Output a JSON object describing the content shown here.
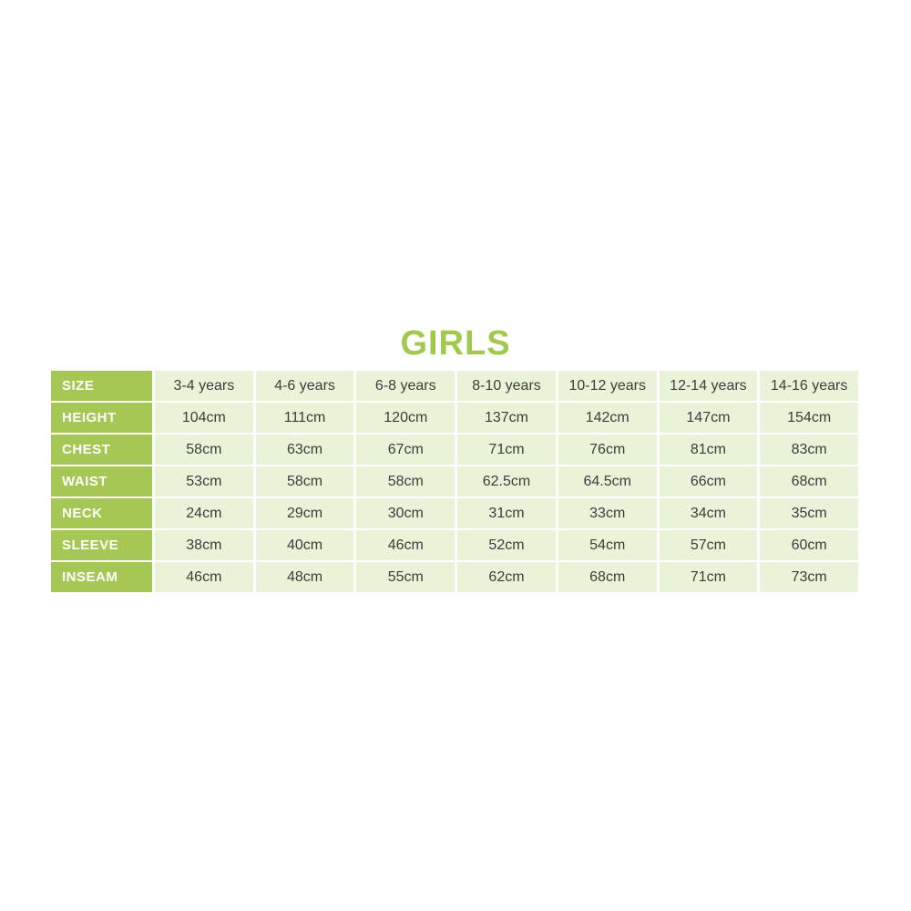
{
  "title": "GIRLS",
  "colors": {
    "title_green": "#a2c84d",
    "label_bg": "#a4c853",
    "label_text": "#ffffff",
    "cell_bg": "#e9f3d8",
    "cell_text": "#3d3d3d",
    "page_bg": "#ffffff"
  },
  "chart_data": {
    "type": "table",
    "title": "GIRLS",
    "columns": [
      "SIZE",
      "3-4 years",
      "4-6 years",
      "6-8 years",
      "8-10 years",
      "10-12 years",
      "12-14 years",
      "14-16 years"
    ],
    "rows": [
      [
        "HEIGHT",
        "104cm",
        "111cm",
        "120cm",
        "137cm",
        "142cm",
        "147cm",
        "154cm"
      ],
      [
        "CHEST",
        "58cm",
        "63cm",
        "67cm",
        "71cm",
        "76cm",
        "81cm",
        "83cm"
      ],
      [
        "WAIST",
        "53cm",
        "58cm",
        "58cm",
        "62.5cm",
        "64.5cm",
        "66cm",
        "68cm"
      ],
      [
        "NECK",
        "24cm",
        "29cm",
        "30cm",
        "31cm",
        "33cm",
        "34cm",
        "35cm"
      ],
      [
        "SLEEVE",
        "38cm",
        "40cm",
        "46cm",
        "52cm",
        "54cm",
        "57cm",
        "60cm"
      ],
      [
        "INSEAM",
        "46cm",
        "48cm",
        "55cm",
        "62cm",
        "68cm",
        "71cm",
        "73cm"
      ]
    ]
  },
  "table": {
    "header_label": "SIZE",
    "size_columns": [
      "3-4 years",
      "4-6 years",
      "6-8 years",
      "8-10 years",
      "10-12 years",
      "12-14 years",
      "14-16 years"
    ],
    "rows": [
      {
        "label": "HEIGHT",
        "values": [
          "104cm",
          "111cm",
          "120cm",
          "137cm",
          "142cm",
          "147cm",
          "154cm"
        ]
      },
      {
        "label": "CHEST",
        "values": [
          "58cm",
          "63cm",
          "67cm",
          "71cm",
          "76cm",
          "81cm",
          "83cm"
        ]
      },
      {
        "label": "WAIST",
        "values": [
          "53cm",
          "58cm",
          "58cm",
          "62.5cm",
          "64.5cm",
          "66cm",
          "68cm"
        ]
      },
      {
        "label": "NECK",
        "values": [
          "24cm",
          "29cm",
          "30cm",
          "31cm",
          "33cm",
          "34cm",
          "35cm"
        ]
      },
      {
        "label": "SLEEVE",
        "values": [
          "38cm",
          "40cm",
          "46cm",
          "52cm",
          "54cm",
          "57cm",
          "60cm"
        ]
      },
      {
        "label": "INSEAM",
        "values": [
          "46cm",
          "48cm",
          "55cm",
          "62cm",
          "68cm",
          "71cm",
          "73cm"
        ]
      }
    ]
  }
}
